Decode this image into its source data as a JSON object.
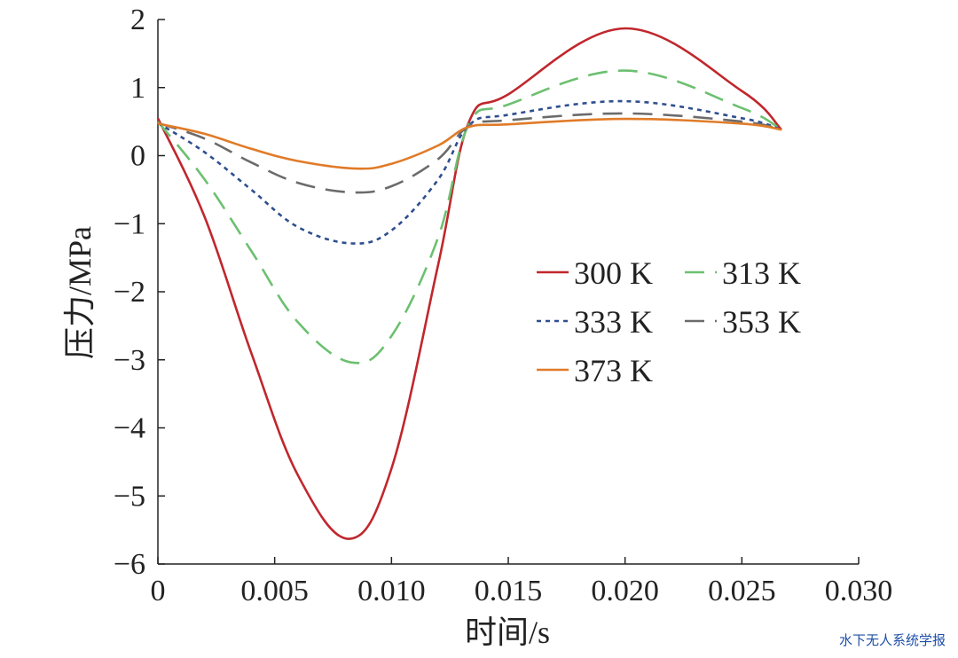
{
  "watermark": "水下无人系统学报",
  "chart_data": {
    "type": "line",
    "xlabel": "时间/s",
    "ylabel": "压力/MPa",
    "xlim": [
      0,
      0.03
    ],
    "ylim": [
      -6,
      2
    ],
    "xticks": [
      0,
      0.005,
      0.01,
      0.015,
      0.02,
      0.025,
      0.03
    ],
    "xtick_labels": [
      "0",
      "0.005",
      "0.010",
      "0.015",
      "0.020",
      "0.025",
      "0.030"
    ],
    "yticks": [
      -6,
      -5,
      -4,
      -3,
      -2,
      -1,
      0,
      1,
      2
    ],
    "ytick_labels": [
      "−6",
      "−5",
      "−4",
      "−3",
      "−2",
      "−1",
      "0",
      "1",
      "2"
    ],
    "grid": false,
    "legend_position": "right-center",
    "series": [
      {
        "name": "300 K",
        "color": "#c0272d",
        "dash": "solid",
        "x": [
          0,
          0.002,
          0.004,
          0.006,
          0.0082,
          0.01,
          0.012,
          0.0133,
          0.015,
          0.02,
          0.025,
          0.0267
        ],
        "y": [
          0.55,
          -0.9,
          -2.9,
          -4.7,
          -5.63,
          -4.6,
          -1.6,
          0.48,
          0.9,
          1.87,
          0.95,
          0.38
        ]
      },
      {
        "name": "313 K",
        "color": "#6cc070",
        "dash": "long",
        "x": [
          0,
          0.002,
          0.004,
          0.006,
          0.0083,
          0.01,
          0.012,
          0.0133,
          0.015,
          0.02,
          0.025,
          0.0267
        ],
        "y": [
          0.5,
          -0.35,
          -1.4,
          -2.45,
          -3.04,
          -2.65,
          -1.2,
          0.45,
          0.75,
          1.25,
          0.7,
          0.38
        ]
      },
      {
        "name": "333 K",
        "color": "#2e4f8f",
        "dash": "short",
        "x": [
          0,
          0.002,
          0.004,
          0.006,
          0.0083,
          0.01,
          0.012,
          0.0133,
          0.015,
          0.02,
          0.025,
          0.0267
        ],
        "y": [
          0.48,
          0.05,
          -0.5,
          -1.05,
          -1.29,
          -1.1,
          -0.35,
          0.44,
          0.6,
          0.8,
          0.55,
          0.38
        ]
      },
      {
        "name": "353 K",
        "color": "#6b6b6b",
        "dash": "long",
        "x": [
          0,
          0.002,
          0.004,
          0.006,
          0.0083,
          0.01,
          0.012,
          0.0133,
          0.015,
          0.02,
          0.025,
          0.0267
        ],
        "y": [
          0.48,
          0.25,
          -0.1,
          -0.4,
          -0.54,
          -0.45,
          -0.05,
          0.43,
          0.52,
          0.62,
          0.5,
          0.38
        ]
      },
      {
        "name": "373 K",
        "color": "#e07b28",
        "dash": "solid",
        "x": [
          0,
          0.002,
          0.004,
          0.006,
          0.0085,
          0.01,
          0.012,
          0.0133,
          0.015,
          0.02,
          0.025,
          0.0267
        ],
        "y": [
          0.47,
          0.32,
          0.1,
          -0.08,
          -0.19,
          -0.12,
          0.15,
          0.42,
          0.46,
          0.54,
          0.47,
          0.38
        ]
      }
    ]
  }
}
